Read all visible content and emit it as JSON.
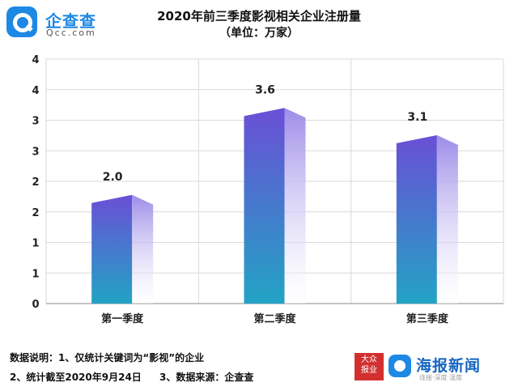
{
  "logo": {
    "name": "企查查",
    "sub": "Qcc.com",
    "icon": "qcc-search-icon"
  },
  "brand": {
    "badge": "大众\n报业",
    "name": "海报新闻",
    "tagline": "连接·深度·温度",
    "icon": "haibao-icon",
    "color": "#1565c0"
  },
  "notes": {
    "line1": "数据说明：1、仅统计关键词为“影视”的企业",
    "line2": "2、统计截至2020年9月24日",
    "line3": "3、数据来源：企查查"
  },
  "chart_data": {
    "type": "bar",
    "title": "2020年前三季度影视相关企业注册量",
    "subtitle": "（单位：万家）",
    "categories": [
      "第一季度",
      "第二季度",
      "第三季度"
    ],
    "values": [
      2.0,
      3.6,
      3.1
    ],
    "data_labels": [
      "2.0",
      "3.6",
      "3.1"
    ],
    "yticks": [
      "0",
      "1",
      "1",
      "2",
      "2",
      "3",
      "3",
      "4",
      "4"
    ],
    "ylim": [
      0,
      4.5
    ],
    "grid": true,
    "legend": false,
    "colors": {
      "top": "#6a4fd6",
      "bottom": "#22a3c4",
      "side": "#9d8ce8"
    }
  }
}
